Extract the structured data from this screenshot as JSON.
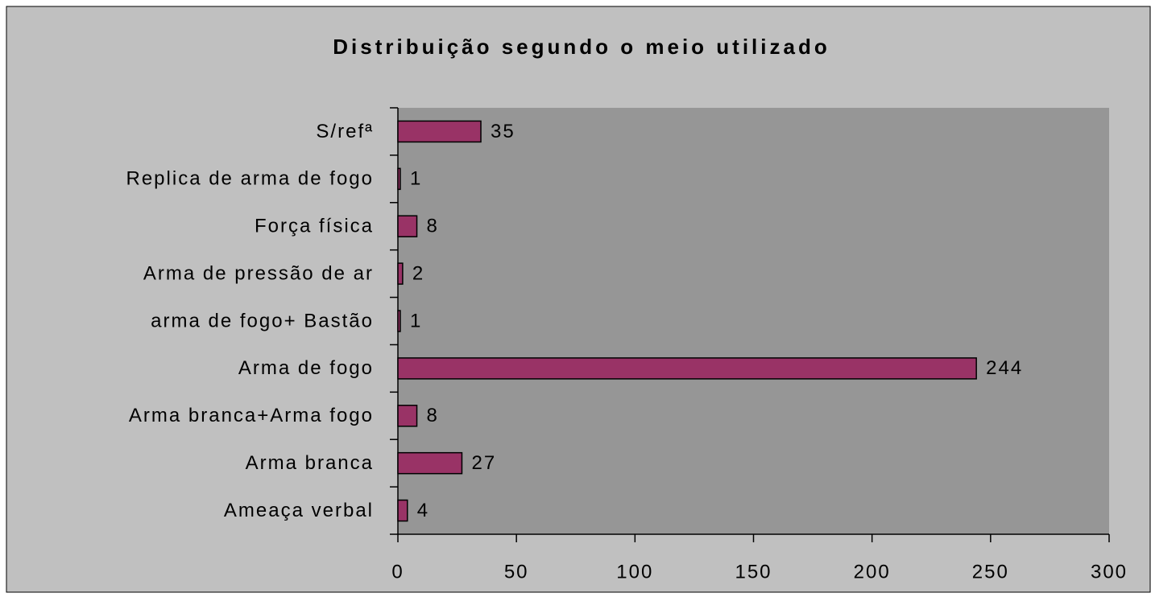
{
  "chart_data": {
    "type": "bar",
    "orientation": "horizontal",
    "title": "Distribuição segundo o meio utilizado",
    "categories": [
      "S/refª",
      "Replica de arma de fogo",
      "Força física",
      "Arma de pressão de ar",
      "arma de fogo+ Bastão",
      "Arma de fogo",
      "Arma branca+Arma fogo",
      "Arma branca",
      "Ameaça verbal"
    ],
    "values": [
      35,
      1,
      8,
      2,
      1,
      244,
      8,
      27,
      4
    ],
    "color": "#993366",
    "xlim": [
      0,
      300
    ],
    "xticks": [
      0,
      50,
      100,
      150,
      200,
      250,
      300
    ]
  }
}
